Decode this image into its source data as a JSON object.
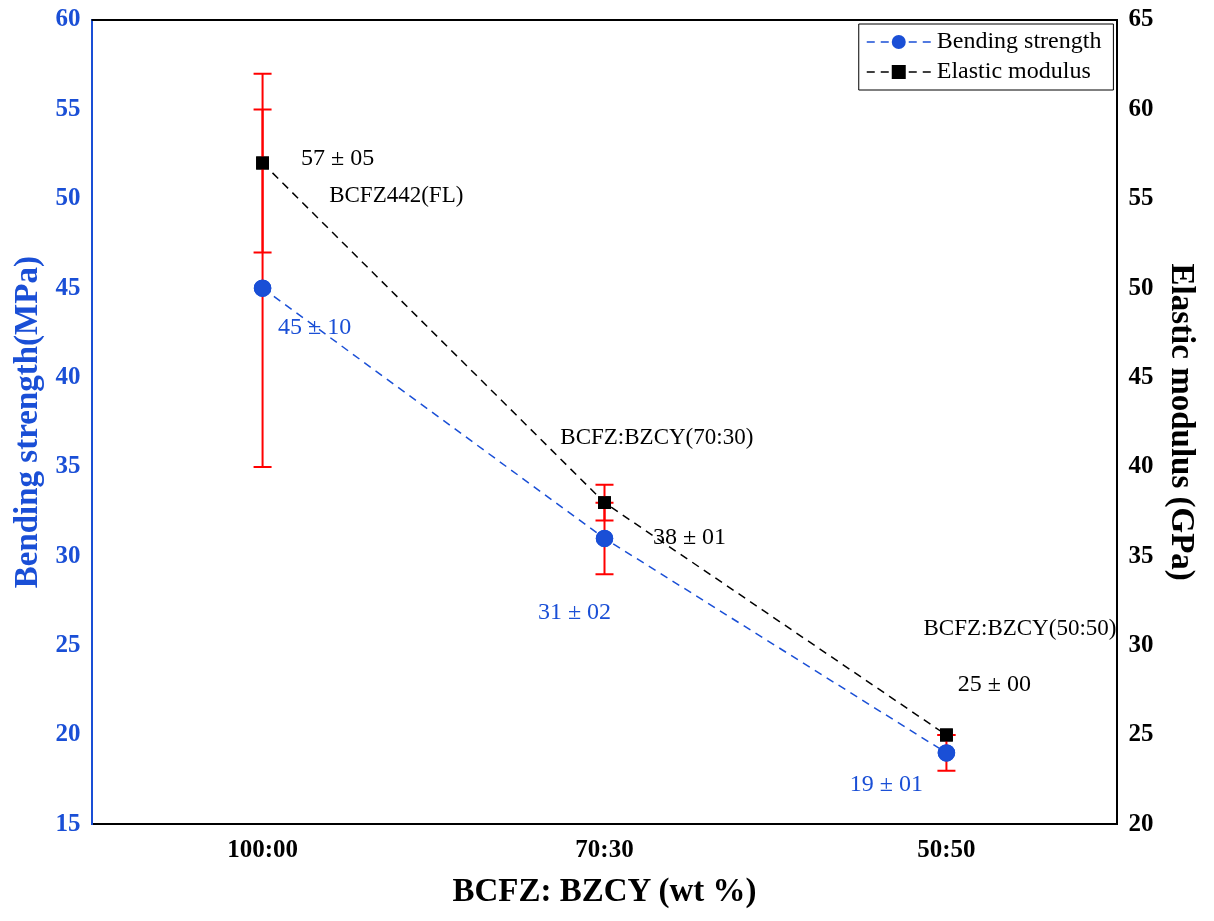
{
  "chart_data": {
    "type": "line",
    "xlabel": "BCFZ: BZCY (wt %)",
    "ylabel": "Bending strength(MPa)",
    "y2label": "Elastic modulus (GPa)",
    "categories": [
      "100:00",
      "70:30",
      "50:50"
    ],
    "series": [
      {
        "name": "Bending strength",
        "color": "#1a4fd6",
        "marker": "circle",
        "values": [
          45,
          31,
          19
        ],
        "errors": [
          10,
          2,
          1
        ],
        "value_labels": [
          "45 ± 10",
          "31 ± 02",
          "19 ± 01"
        ]
      },
      {
        "name": "Elastic modulus",
        "color": "#000000",
        "marker": "square",
        "axis": "y2",
        "values": [
          57,
          38,
          25
        ],
        "errors": [
          5,
          1,
          0
        ],
        "value_labels": [
          "57 ± 05",
          "38 ± 01",
          "25 ± 00"
        ]
      }
    ],
    "ylim": [
      15,
      60
    ],
    "yticks": [
      15,
      20,
      25,
      30,
      35,
      40,
      45,
      50,
      55,
      60
    ],
    "y2lim": [
      20,
      65
    ],
    "y2ticks": [
      20,
      25,
      30,
      35,
      40,
      45,
      50,
      55,
      60,
      65
    ],
    "annotations": [
      "BCFZ442(FL)",
      "BCFZ:BZCY(70:30)",
      "BCFZ:BZCY(50:50)"
    ],
    "line_style": "dashed",
    "grid": false,
    "legend": "top right"
  }
}
